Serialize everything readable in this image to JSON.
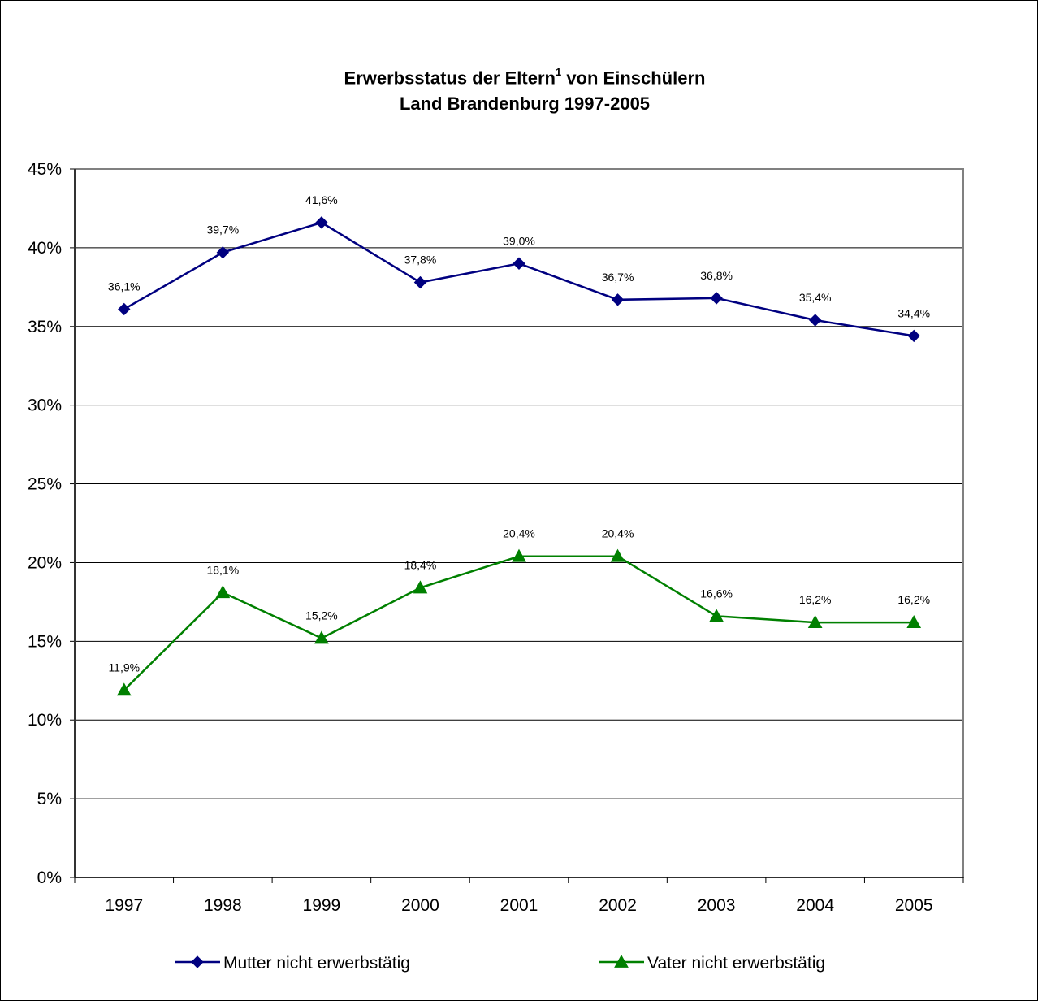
{
  "chart_data": {
    "type": "line",
    "title_line1_pre": "Erwerbsstatus der Eltern",
    "title_sup": "1",
    "title_line1_post": " von Einschülern",
    "title_line2": "Land Brandenburg 1997-2005",
    "xlabel": "",
    "ylabel": "",
    "categories": [
      "1997",
      "1998",
      "1999",
      "2000",
      "2001",
      "2002",
      "2003",
      "2004",
      "2005"
    ],
    "ylim": [
      0,
      45
    ],
    "yticks": [
      "0%",
      "5%",
      "10%",
      "15%",
      "20%",
      "25%",
      "30%",
      "35%",
      "40%",
      "45%"
    ],
    "grid": true,
    "legend_position": "bottom",
    "series": [
      {
        "name": "Mutter nicht erwerbstätig",
        "marker": "diamond",
        "color": "#000080",
        "values": [
          36.1,
          39.7,
          41.6,
          37.8,
          39.0,
          36.7,
          36.8,
          35.4,
          34.4
        ],
        "labels": [
          "36,1%",
          "39,7%",
          "41,6%",
          "37,8%",
          "39,0%",
          "36,7%",
          "36,8%",
          "35,4%",
          "34,4%"
        ]
      },
      {
        "name": "Vater nicht erwerbstätig",
        "marker": "triangle",
        "color": "#008000",
        "values": [
          11.9,
          18.1,
          15.2,
          18.4,
          20.4,
          20.4,
          16.6,
          16.2,
          16.2
        ],
        "labels": [
          "11,9%",
          "18,1%",
          "15,2%",
          "18,4%",
          "20,4%",
          "20,4%",
          "16,6%",
          "16,2%",
          "16,2%"
        ]
      }
    ]
  }
}
